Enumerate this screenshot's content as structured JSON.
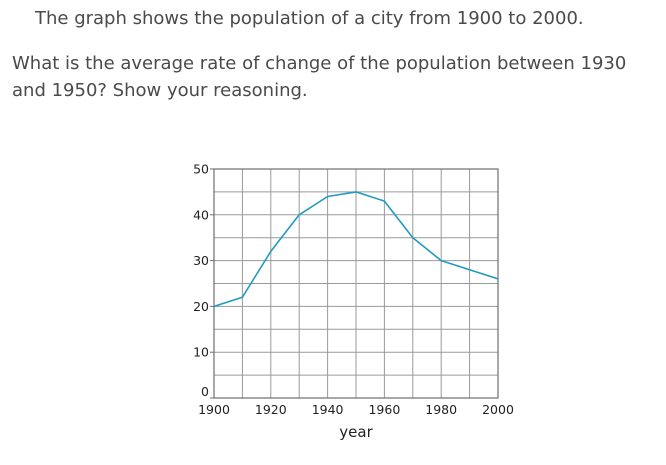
{
  "intro_text": "The graph shows the population of a city from 1900 to 2000.",
  "question_text": "What is the average rate of change of the population between 1930 and 1950? Show your reasoning.",
  "colors": {
    "line": "#1f9bc0",
    "grid": "#9a9a9a",
    "text": "#4a4a4a"
  },
  "chart_data": {
    "type": "line",
    "title": "",
    "xlabel": "year",
    "ylabel": "",
    "xlim": [
      1900,
      2000
    ],
    "ylim": [
      0,
      50
    ],
    "x_ticks": [
      1900,
      1920,
      1940,
      1960,
      1980,
      2000
    ],
    "y_ticks": [
      0,
      10,
      20,
      30,
      40,
      50
    ],
    "x_minor_step": 10,
    "y_minor_step": 5,
    "grid": true,
    "legend": "none",
    "series": [
      {
        "x": [
          1900,
          1910,
          1920,
          1930,
          1940,
          1950,
          1960,
          1970,
          1980,
          1990,
          2000
        ],
        "y": [
          20,
          22,
          32,
          40,
          44,
          45,
          43,
          35,
          30,
          28,
          26
        ]
      }
    ]
  }
}
